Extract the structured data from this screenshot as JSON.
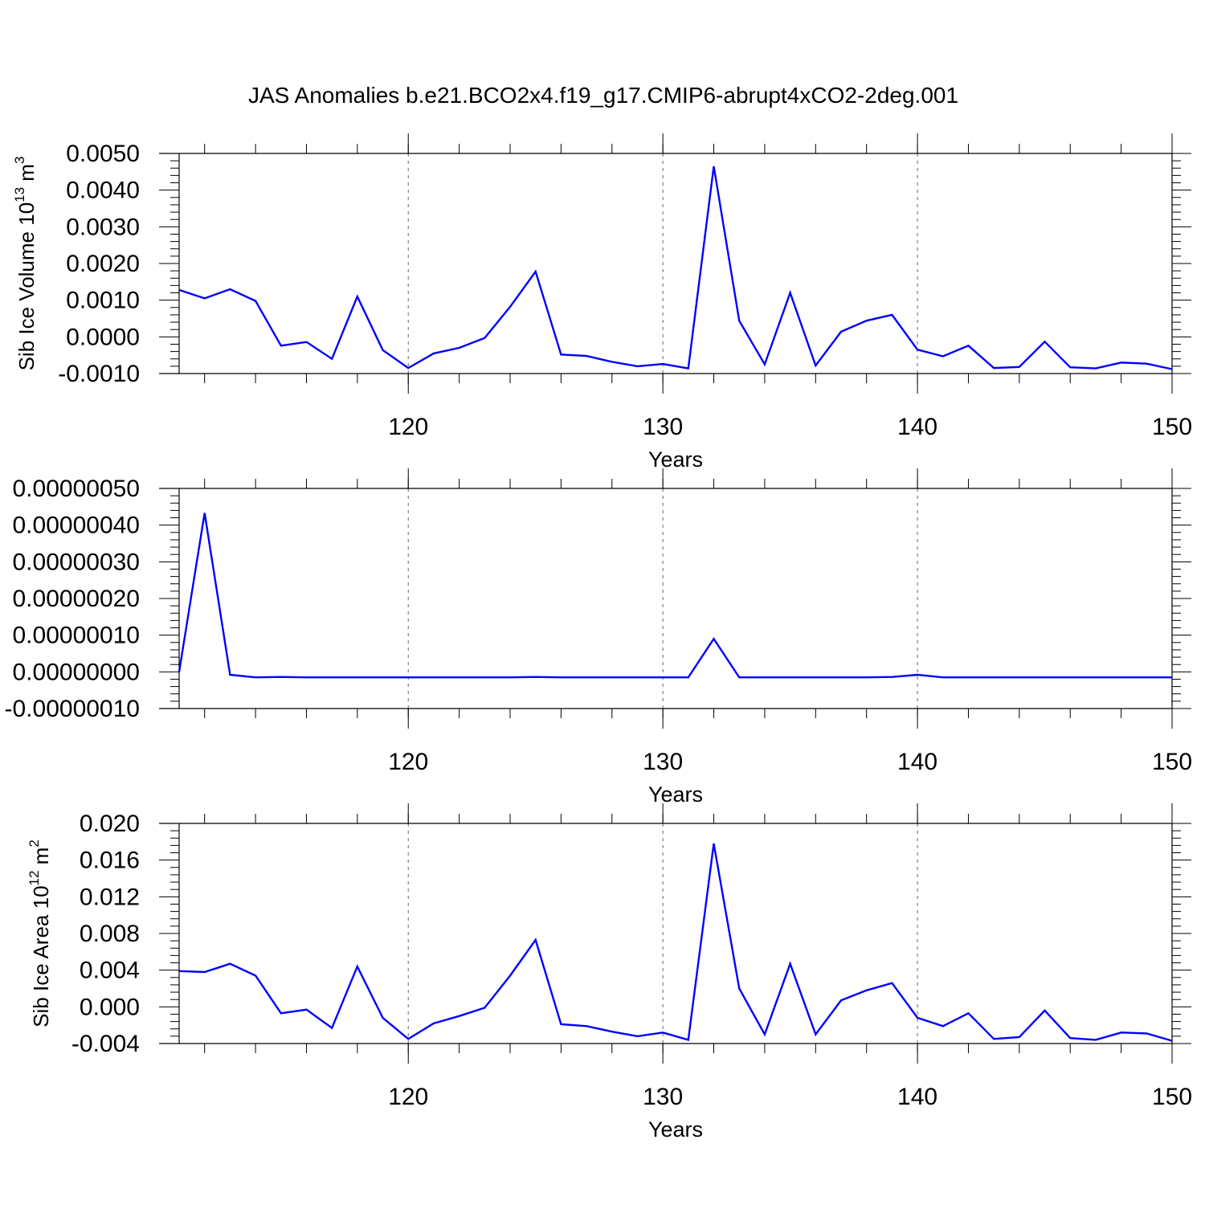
{
  "title": "JAS Anomalies b.e21.BCO2x4.f19_g17.CMIP6-abrupt4xCO2-2deg.001",
  "colors": {
    "line": "#0000ff",
    "axis": "#000000",
    "grid": "#666666"
  },
  "chart_data": [
    {
      "type": "line",
      "title": "",
      "xlabel": "Years",
      "ylabel_main": "Sib Ice Volume 10",
      "ylabel_exp": "13",
      "ylabel_unit": " m",
      "ylabel_unit_exp": "3",
      "xlim": [
        111,
        150
      ],
      "ylim": [
        -0.001,
        0.005
      ],
      "grid": "vertical dashed at major x ticks",
      "x_ticks": [
        120,
        130,
        140,
        150
      ],
      "x_tick_labels": [
        "120",
        "130",
        "140",
        "150"
      ],
      "y_ticks": [
        -0.001,
        0,
        0.001,
        0.002,
        0.003,
        0.004,
        0.005
      ],
      "y_tick_labels": [
        "-0.0010",
        "0.0000",
        "0.0010",
        "0.0020",
        "0.0030",
        "0.0040",
        "0.0050"
      ],
      "x": [
        111,
        112,
        113,
        114,
        115,
        116,
        117,
        118,
        119,
        120,
        121,
        122,
        123,
        124,
        125,
        126,
        127,
        128,
        129,
        130,
        131,
        132,
        133,
        134,
        135,
        136,
        137,
        138,
        139,
        140,
        141,
        142,
        143,
        144,
        145,
        146,
        147,
        148,
        149,
        150
      ],
      "series": [
        {
          "values": [
            0.00128,
            0.00105,
            0.0013,
            0.00098,
            -0.00024,
            -0.00014,
            -0.0006,
            0.0011,
            -0.00036,
            -0.00085,
            -0.00045,
            -0.0003,
            -3e-05,
            0.00082,
            0.00178,
            -0.00048,
            -0.00052,
            -0.00068,
            -0.0008,
            -0.00074,
            -0.00086,
            0.00465,
            0.00044,
            -0.00075,
            0.0012,
            -0.00078,
            0.00014,
            0.00044,
            0.0006,
            -0.00035,
            -0.00053,
            -0.00024,
            -0.00085,
            -0.00082,
            -0.00013,
            -0.00083,
            -0.00086,
            -0.0007,
            -0.00073,
            -0.00088
          ]
        }
      ]
    },
    {
      "type": "line",
      "title": "",
      "xlabel": "Years",
      "ylabel_main": "",
      "ylabel_exp": "",
      "ylabel_unit": "",
      "ylabel_unit_exp": "",
      "xlim": [
        111,
        150
      ],
      "ylim": [
        -1e-07,
        5e-07
      ],
      "grid": "vertical dashed at major x ticks",
      "x_ticks": [
        120,
        130,
        140,
        150
      ],
      "x_tick_labels": [
        "120",
        "130",
        "140",
        "150"
      ],
      "y_ticks": [
        -1e-07,
        0,
        1e-07,
        2e-07,
        3e-07,
        4e-07,
        5e-07
      ],
      "y_tick_labels": [
        "-0.00000010",
        "0.00000000",
        "0.00000010",
        "0.00000020",
        "0.00000030",
        "0.00000040",
        "0.00000050"
      ],
      "x": [
        111,
        112,
        113,
        114,
        115,
        116,
        117,
        118,
        119,
        120,
        121,
        122,
        123,
        124,
        125,
        126,
        127,
        128,
        129,
        130,
        131,
        132,
        133,
        134,
        135,
        136,
        137,
        138,
        139,
        140,
        141,
        142,
        143,
        144,
        145,
        146,
        147,
        148,
        149,
        150
      ],
      "series": [
        {
          "values": [
            0.0,
            4.33e-07,
            -8e-09,
            -1.5e-08,
            -1.4e-08,
            -1.5e-08,
            -1.5e-08,
            -1.5e-08,
            -1.5e-08,
            -1.5e-08,
            -1.5e-08,
            -1.5e-08,
            -1.5e-08,
            -1.5e-08,
            -1.4e-08,
            -1.5e-08,
            -1.5e-08,
            -1.5e-08,
            -1.5e-08,
            -1.5e-08,
            -1.5e-08,
            9e-08,
            -1.5e-08,
            -1.5e-08,
            -1.5e-08,
            -1.5e-08,
            -1.5e-08,
            -1.5e-08,
            -1.4e-08,
            -8e-09,
            -1.5e-08,
            -1.5e-08,
            -1.5e-08,
            -1.5e-08,
            -1.5e-08,
            -1.5e-08,
            -1.5e-08,
            -1.5e-08,
            -1.5e-08,
            -1.5e-08
          ]
        }
      ]
    },
    {
      "type": "line",
      "title": "",
      "xlabel": "Years",
      "ylabel_main": "Sib Ice Area 10",
      "ylabel_exp": "12",
      "ylabel_unit": " m",
      "ylabel_unit_exp": "2",
      "xlim": [
        111,
        150
      ],
      "ylim": [
        -0.004,
        0.02
      ],
      "grid": "vertical dashed at major x ticks",
      "x_ticks": [
        120,
        130,
        140,
        150
      ],
      "x_tick_labels": [
        "120",
        "130",
        "140",
        "150"
      ],
      "y_ticks": [
        -0.004,
        0,
        0.004,
        0.008,
        0.012,
        0.016,
        0.02
      ],
      "y_tick_labels": [
        "-0.004",
        "0.000",
        "0.004",
        "0.008",
        "0.012",
        "0.016",
        "0.020"
      ],
      "x": [
        111,
        112,
        113,
        114,
        115,
        116,
        117,
        118,
        119,
        120,
        121,
        122,
        123,
        124,
        125,
        126,
        127,
        128,
        129,
        130,
        131,
        132,
        133,
        134,
        135,
        136,
        137,
        138,
        139,
        140,
        141,
        142,
        143,
        144,
        145,
        146,
        147,
        148,
        149,
        150
      ],
      "series": [
        {
          "values": [
            0.0039,
            0.0038,
            0.0047,
            0.0034,
            -0.0007,
            -0.0003,
            -0.0023,
            0.0044,
            -0.0012,
            -0.0035,
            -0.0018,
            -0.001,
            -0.0001,
            0.0034,
            0.0073,
            -0.0019,
            -0.0021,
            -0.0027,
            -0.0032,
            -0.0028,
            -0.0036,
            0.0178,
            0.002,
            -0.003,
            0.0047,
            -0.003,
            0.0007,
            0.0018,
            0.0026,
            -0.0012,
            -0.0021,
            -0.0007,
            -0.0035,
            -0.0033,
            -0.0004,
            -0.0034,
            -0.0036,
            -0.0028,
            -0.0029,
            -0.0037
          ]
        }
      ]
    }
  ]
}
